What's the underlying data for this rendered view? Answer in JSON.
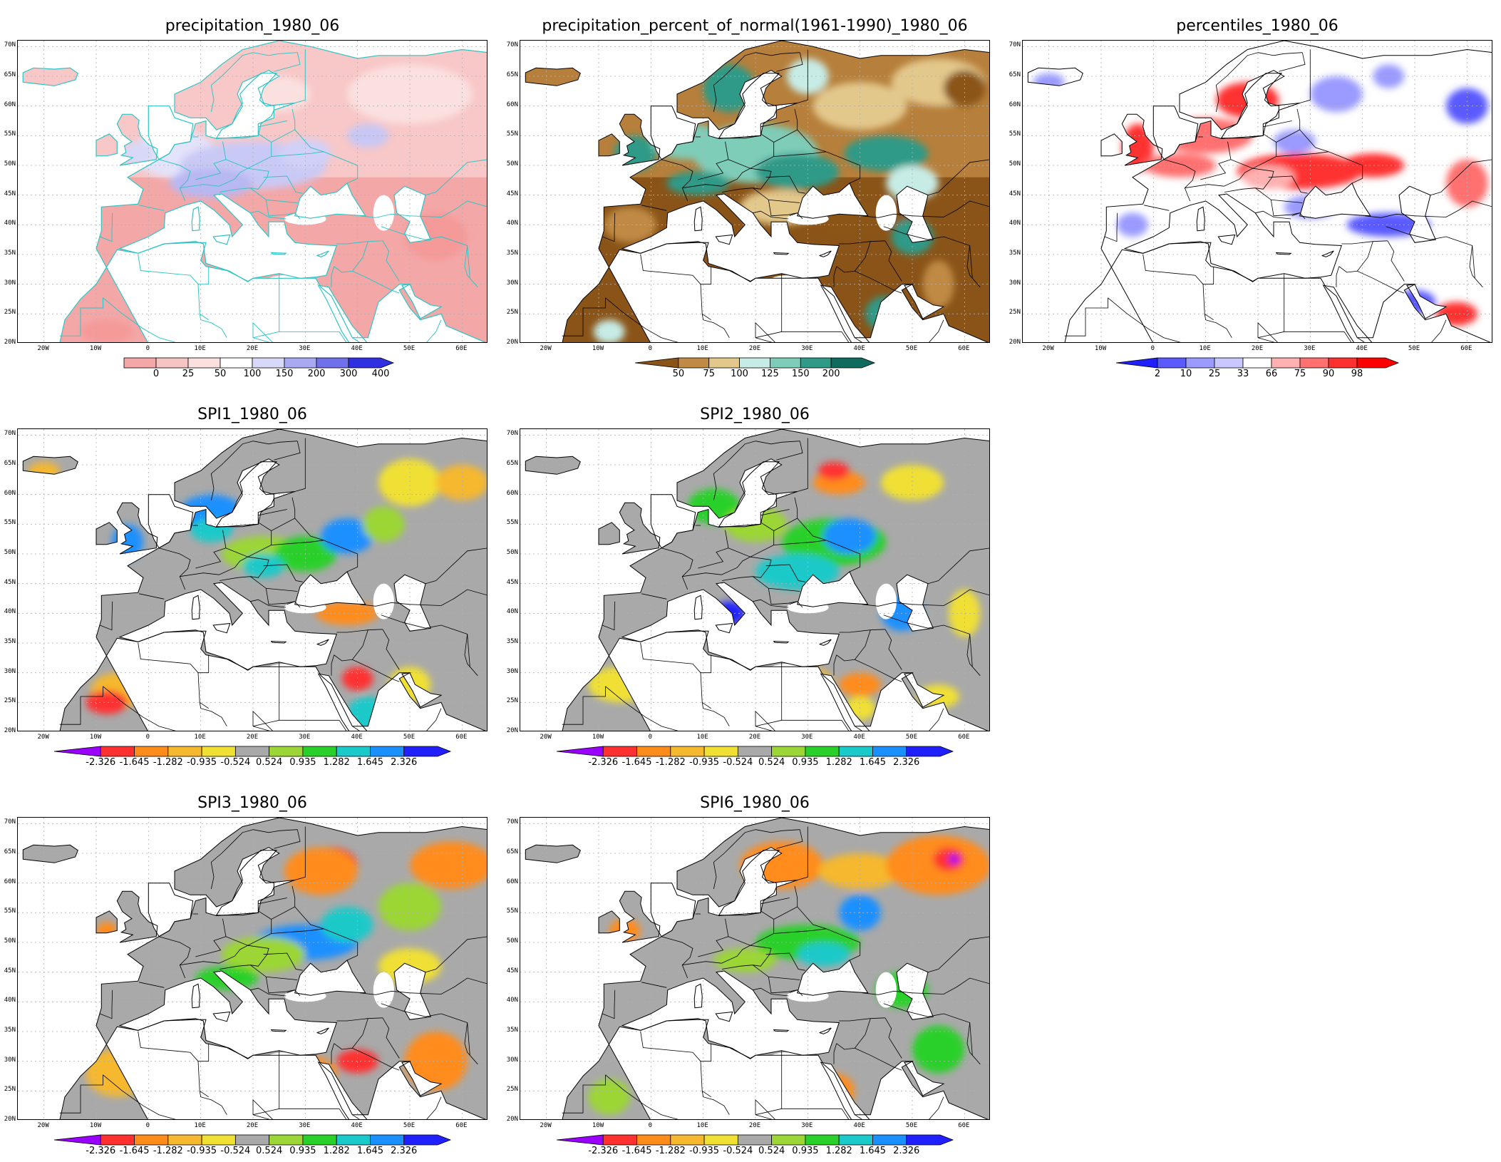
{
  "lat_labels": [
    "70N",
    "65N",
    "60N",
    "55N",
    "50N",
    "45N",
    "40N",
    "35N",
    "30N",
    "25N",
    "20N"
  ],
  "lon_labels": [
    "20W",
    "10W",
    "0",
    "10E",
    "20E",
    "30E",
    "40E",
    "50E",
    "60E"
  ],
  "panels": [
    {
      "id": "precip",
      "title": "precipitation_1980_06",
      "style": "precip",
      "colorbar": {
        "labels": [
          "0",
          "25",
          "50",
          "100",
          "150",
          "200",
          "300",
          "400"
        ],
        "colors": [
          "#f4a7a7",
          "#f7c4c4",
          "#fbe0e0",
          "#ffffff",
          "#d8d8f8",
          "#a9a9f2",
          "#7070ea",
          "#3030e0"
        ],
        "left_arrow": false,
        "right_arrow": true
      }
    },
    {
      "id": "pct",
      "title": "precipitation_percent_of_normal(1961-1990)_1980_06",
      "style": "pct",
      "colorbar": {
        "labels": [
          "50",
          "75",
          "100",
          "125",
          "150",
          "200"
        ],
        "colors": [
          "#8a5418",
          "#c08a45",
          "#e3c88c",
          "#c7ece6",
          "#7ecdb9",
          "#2f9a87",
          "#0f6b5d"
        ],
        "left_arrow": true,
        "right_arrow": true
      }
    },
    {
      "id": "perc",
      "title": "percentiles_1980_06",
      "style": "perc",
      "colorbar": {
        "labels": [
          "2",
          "10",
          "25",
          "33",
          "66",
          "75",
          "90",
          "98"
        ],
        "colors": [
          "#2020ff",
          "#5a5aff",
          "#9a9aff",
          "#c8c8ff",
          "#ffffff",
          "#ffb0b0",
          "#ff7070",
          "#ff3030",
          "#ff0000"
        ],
        "left_arrow": true,
        "right_arrow": true
      }
    },
    {
      "id": "spi1",
      "title": "SPI1_1980_06",
      "style": "spi1",
      "colorbar": {
        "labels": [
          "-2.326",
          "-1.645",
          "-1.282",
          "-0.935",
          "-0.524",
          "0.524",
          "0.935",
          "1.282",
          "1.645",
          "2.326"
        ],
        "colors": [
          "#9a00ff",
          "#ff3030",
          "#ff8c1a",
          "#f5b82e",
          "#f0e034",
          "#a9a9a9",
          "#9bd636",
          "#2ad02a",
          "#1ac9c9",
          "#1a90ff",
          "#2020ff"
        ],
        "left_arrow": true,
        "right_arrow": true
      }
    },
    {
      "id": "spi2",
      "title": "SPI2_1980_06",
      "style": "spi2",
      "colorbar": {
        "labels": [
          "-2.326",
          "-1.645",
          "-1.282",
          "-0.935",
          "-0.524",
          "0.524",
          "0.935",
          "1.282",
          "1.645",
          "2.326"
        ],
        "colors": [
          "#9a00ff",
          "#ff3030",
          "#ff8c1a",
          "#f5b82e",
          "#f0e034",
          "#a9a9a9",
          "#9bd636",
          "#2ad02a",
          "#1ac9c9",
          "#1a90ff",
          "#2020ff"
        ],
        "left_arrow": true,
        "right_arrow": true
      }
    },
    {
      "id": "spi3",
      "title": "SPI3_1980_06",
      "style": "spi3",
      "colorbar": {
        "labels": [
          "-2.326",
          "-1.645",
          "-1.282",
          "-0.935",
          "-0.524",
          "0.524",
          "0.935",
          "1.282",
          "1.645",
          "2.326"
        ],
        "colors": [
          "#9a00ff",
          "#ff3030",
          "#ff8c1a",
          "#f5b82e",
          "#f0e034",
          "#a9a9a9",
          "#9bd636",
          "#2ad02a",
          "#1ac9c9",
          "#1a90ff",
          "#2020ff"
        ],
        "left_arrow": true,
        "right_arrow": true
      }
    },
    {
      "id": "spi6",
      "title": "SPI6_1980_06",
      "style": "spi6",
      "colorbar": {
        "labels": [
          "-2.326",
          "-1.645",
          "-1.282",
          "-0.935",
          "-0.524",
          "0.524",
          "0.935",
          "1.282",
          "1.645",
          "2.326"
        ],
        "colors": [
          "#9a00ff",
          "#ff3030",
          "#ff8c1a",
          "#f5b82e",
          "#f0e034",
          "#a9a9a9",
          "#9bd636",
          "#2ad02a",
          "#1ac9c9",
          "#1a90ff",
          "#2020ff"
        ],
        "left_arrow": true,
        "right_arrow": true
      }
    }
  ]
}
